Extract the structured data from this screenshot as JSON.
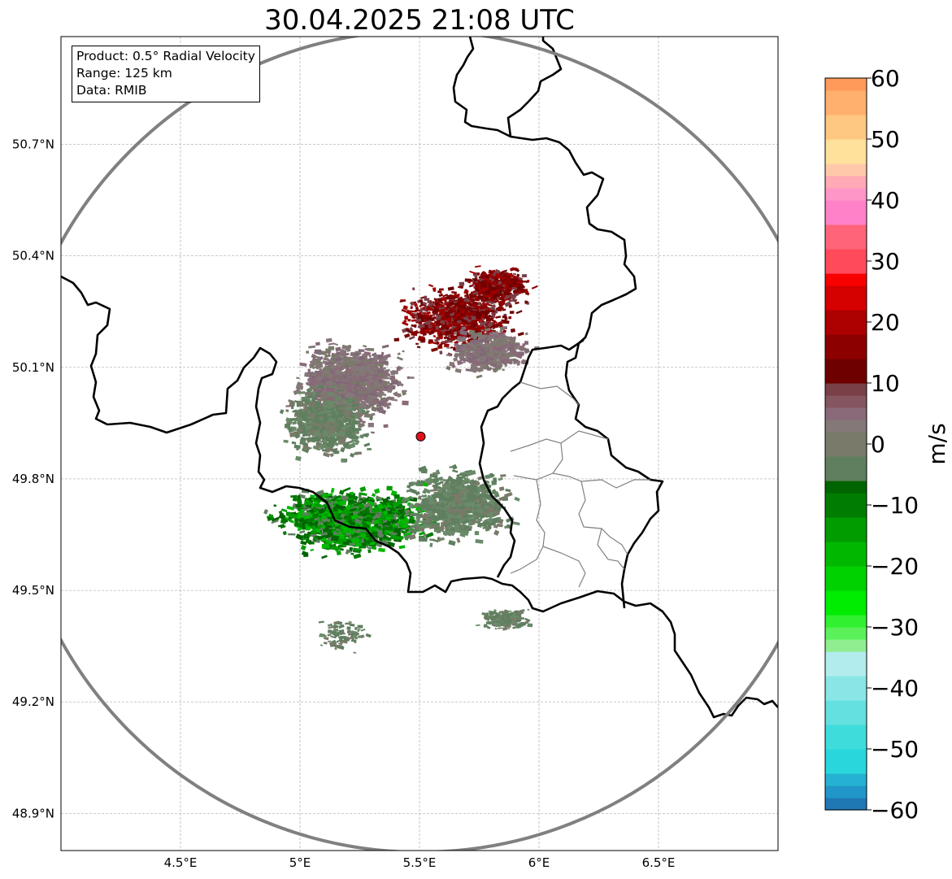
{
  "title": "30.04.2025 21:08 UTC",
  "info": {
    "product": "Product: 0.5° Radial Velocity",
    "range": "Range: 125 km",
    "data": "Data: RMIB"
  },
  "map": {
    "lon_range": [
      4.0,
      7.0
    ],
    "lat_range": [
      48.8,
      50.99
    ],
    "radar_site": {
      "lon": 5.505,
      "lat": 49.914
    },
    "radar_marker_color": "#e3101b",
    "range_ring_color": "#808080",
    "lon_ticks": [
      {
        "value": 4.5,
        "label": "4.5°E"
      },
      {
        "value": 5.0,
        "label": "5°E"
      },
      {
        "value": 5.5,
        "label": "5.5°E"
      },
      {
        "value": 6.0,
        "label": "6°E"
      },
      {
        "value": 6.5,
        "label": "6.5°E"
      }
    ],
    "lat_ticks": [
      {
        "value": 50.7,
        "label": "50.7°N"
      },
      {
        "value": 50.4,
        "label": "50.4°N"
      },
      {
        "value": 50.1,
        "label": "50.1°N"
      },
      {
        "value": 49.8,
        "label": "49.8°N"
      },
      {
        "value": 49.5,
        "label": "49.5°N"
      },
      {
        "value": 49.2,
        "label": "49.2°N"
      },
      {
        "value": 48.9,
        "label": "48.9°N"
      }
    ]
  },
  "colorbar": {
    "unit": "m/s",
    "min": -60,
    "max": 60,
    "ticks": [
      {
        "value": 60,
        "label": "60"
      },
      {
        "value": 50,
        "label": "50"
      },
      {
        "value": 40,
        "label": "40"
      },
      {
        "value": 30,
        "label": "30"
      },
      {
        "value": 20,
        "label": "20"
      },
      {
        "value": 10,
        "label": "10"
      },
      {
        "value": 0,
        "label": "0"
      },
      {
        "value": -10,
        "label": "−10"
      },
      {
        "value": -20,
        "label": "−20"
      },
      {
        "value": -30,
        "label": "−30"
      },
      {
        "value": -40,
        "label": "−40"
      },
      {
        "value": -50,
        "label": "−50"
      },
      {
        "value": -60,
        "label": "−60"
      }
    ],
    "bands": [
      {
        "from": -60,
        "to": -58,
        "color": "#1f77b4"
      },
      {
        "from": -58,
        "to": -56,
        "color": "#2196c8"
      },
      {
        "from": -56,
        "to": -54,
        "color": "#25b2d2"
      },
      {
        "from": -54,
        "to": -50,
        "color": "#29d6dc"
      },
      {
        "from": -50,
        "to": -46,
        "color": "#3fdcdc"
      },
      {
        "from": -46,
        "to": -42,
        "color": "#64e0e0"
      },
      {
        "from": -42,
        "to": -38,
        "color": "#8ae6e6"
      },
      {
        "from": -38,
        "to": -34,
        "color": "#b2ecec"
      },
      {
        "from": -34,
        "to": -32,
        "color": "#90ee90"
      },
      {
        "from": -32,
        "to": -30,
        "color": "#5bf15b"
      },
      {
        "from": -30,
        "to": -28,
        "color": "#30f030"
      },
      {
        "from": -28,
        "to": -24,
        "color": "#00ec00"
      },
      {
        "from": -24,
        "to": -20,
        "color": "#00d200"
      },
      {
        "from": -20,
        "to": -16,
        "color": "#00b800"
      },
      {
        "from": -16,
        "to": -12,
        "color": "#009c00"
      },
      {
        "from": -12,
        "to": -8,
        "color": "#007d00"
      },
      {
        "from": -8,
        "to": -6,
        "color": "#006400"
      },
      {
        "from": -6,
        "to": -2,
        "color": "#5f7f5f"
      },
      {
        "from": -2,
        "to": 2,
        "color": "#7a7a6a"
      },
      {
        "from": 2,
        "to": 4,
        "color": "#857878"
      },
      {
        "from": 4,
        "to": 6,
        "color": "#8a6a78"
      },
      {
        "from": 6,
        "to": 8,
        "color": "#855560"
      },
      {
        "from": 8,
        "to": 10,
        "color": "#7a4048"
      },
      {
        "from": 10,
        "to": 14,
        "color": "#6e0000"
      },
      {
        "from": 14,
        "to": 18,
        "color": "#8c0000"
      },
      {
        "from": 18,
        "to": 22,
        "color": "#ad0000"
      },
      {
        "from": 22,
        "to": 26,
        "color": "#d50000"
      },
      {
        "from": 26,
        "to": 28,
        "color": "#f70000"
      },
      {
        "from": 28,
        "to": 32,
        "color": "#ff4a5a"
      },
      {
        "from": 32,
        "to": 36,
        "color": "#ff6478"
      },
      {
        "from": 36,
        "to": 40,
        "color": "#ff82c8"
      },
      {
        "from": 40,
        "to": 42,
        "color": "#ff96c8"
      },
      {
        "from": 42,
        "to": 44,
        "color": "#ffaab4"
      },
      {
        "from": 44,
        "to": 46,
        "color": "#ffc8aa"
      },
      {
        "from": 46,
        "to": 50,
        "color": "#ffe19b"
      },
      {
        "from": 50,
        "to": 54,
        "color": "#ffc882"
      },
      {
        "from": 54,
        "to": 58,
        "color": "#ffb06e"
      },
      {
        "from": 58,
        "to": 60,
        "color": "#ff9a5a"
      }
    ]
  },
  "velocity_colors": {
    "inbound_strong": "#007800",
    "inbound_weak": "#5f7f5f",
    "near_zero": "#857878",
    "outbound": "#7a0000",
    "outbound_mid": "#a00000"
  }
}
